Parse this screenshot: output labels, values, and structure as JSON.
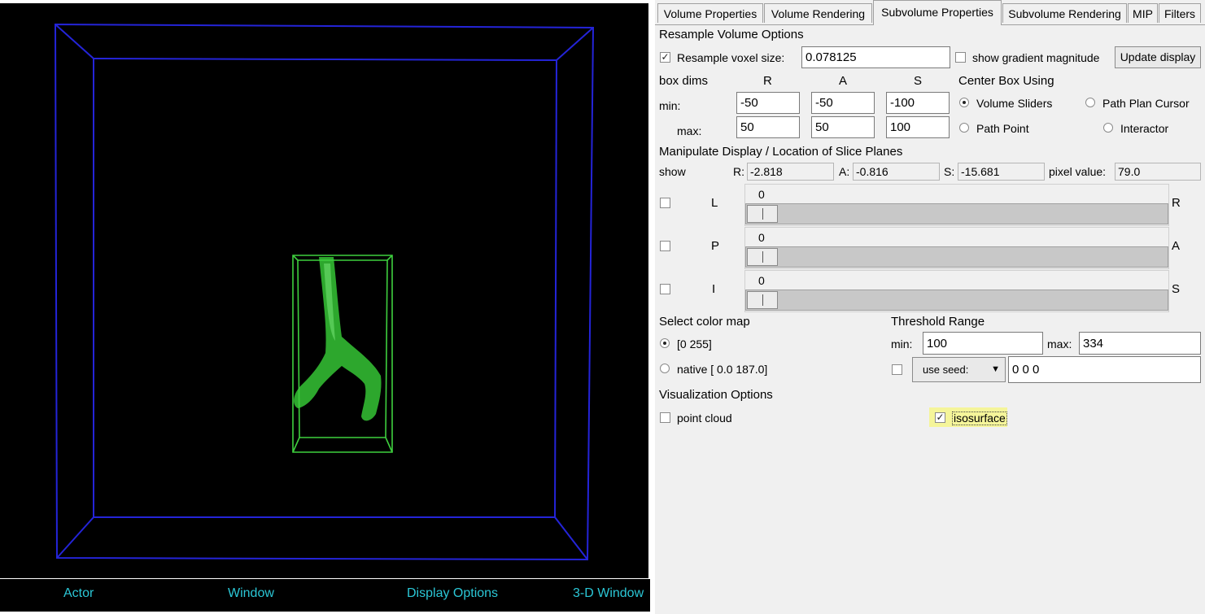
{
  "status_bar": {
    "actor": "Actor",
    "window": "Window",
    "display_options": "Display Options",
    "window_3d": "3-D Window"
  },
  "tabs": [
    "Volume Properties",
    "Volume Rendering",
    "Subvolume Properties",
    "Subvolume Rendering",
    "MIP",
    "Filters"
  ],
  "active_tab": "Subvolume Properties",
  "resample": {
    "section": "Resample Volume Options",
    "voxel_label": "Resample voxel size:",
    "voxel_value": "0.078125",
    "voxel_checked": true,
    "gradient_label": "show gradient magnitude",
    "gradient_checked": false,
    "update_button": "Update display"
  },
  "box": {
    "label": "box dims",
    "col_r": "R",
    "col_a": "A",
    "col_s": "S",
    "min_label": "min:",
    "max_label": "max:",
    "min_r": "-50",
    "min_a": "-50",
    "min_s": "-100",
    "max_r": "50",
    "max_a": "50",
    "max_s": "100"
  },
  "center": {
    "label": "Center Box Using",
    "volume_sliders": "Volume Sliders",
    "path_plan_cursor": "Path Plan Cursor",
    "path_point": "Path Point",
    "interactor": "Interactor",
    "selected": "Volume Sliders"
  },
  "manipulate": {
    "section": "Manipulate Display / Location of Slice Planes",
    "show_label": "show",
    "r_label": "R:",
    "r_value": "-2.818",
    "a_label": "A:",
    "a_value": "-0.816",
    "s_label": "S:",
    "s_value": "-15.681",
    "pixel_label": "pixel value:",
    "pixel_value": "79.0"
  },
  "sliders": [
    {
      "left": "L",
      "right": "R",
      "value": "0"
    },
    {
      "left": "P",
      "right": "A",
      "value": "0"
    },
    {
      "left": "I",
      "right": "S",
      "value": "0"
    }
  ],
  "colormap": {
    "section": "Select color map",
    "opt1": "[0 255]",
    "opt2": "native [ 0.0 187.0]",
    "selected": "[0 255]"
  },
  "threshold": {
    "section": "Threshold Range",
    "min_label": "min:",
    "min_value": "100",
    "max_label": "max:",
    "max_value": "334",
    "seed_label": "use seed:",
    "seed_value": "0 0 0"
  },
  "visualization": {
    "section": "Visualization Options",
    "point_cloud": "point cloud",
    "point_cloud_checked": false,
    "isosurface": "isosurface",
    "isosurface_checked": true
  },
  "colors": {
    "outer_box": "#2424d8",
    "inner_box": "#3ecf3e",
    "vessel": "#2fb02f",
    "status_text": "#2bc7d6",
    "highlight": "#f5f59a"
  }
}
